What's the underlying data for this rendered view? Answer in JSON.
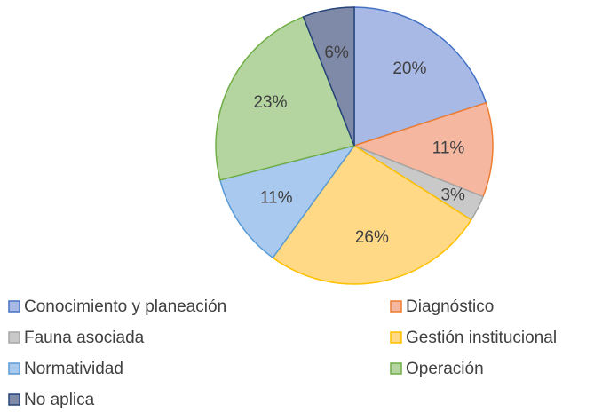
{
  "chart_data": {
    "type": "pie",
    "categories": [
      "Conocimiento y planeación",
      "Diagnóstico",
      "Fauna asociada",
      "Gestión institucional",
      "Normatividad",
      "Operación",
      "No aplica"
    ],
    "values": [
      20,
      11,
      3,
      26,
      11,
      23,
      6
    ],
    "value_labels": [
      "20%",
      "11%",
      "3%",
      "26%",
      "11%",
      "23%",
      "6%"
    ],
    "colors": [
      "#a9b9e5",
      "#f5b7a0",
      "#c9c9c9",
      "#ffd985",
      "#a9c9ee",
      "#b4d59f",
      "#7f8aa8"
    ],
    "edge_colors": [
      "#4472c4",
      "#ed7d31",
      "#a5a5a5",
      "#ffc000",
      "#5b9bd5",
      "#70ad47",
      "#264478"
    ],
    "legend": "bottom"
  }
}
